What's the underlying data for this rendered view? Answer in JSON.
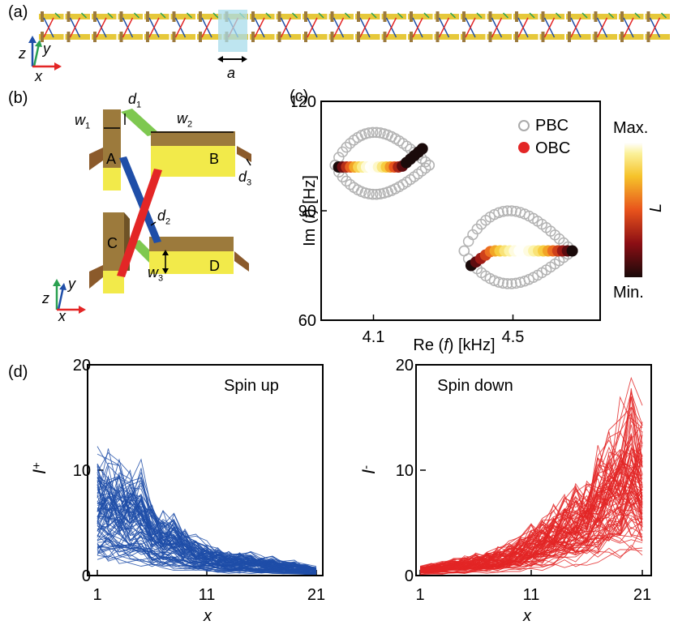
{
  "panels": {
    "a": "(a)",
    "b": "(b)",
    "c": "(c)",
    "d": "(d)"
  },
  "panel_a": {
    "lattice_const": "a",
    "axes": {
      "z": "z",
      "y": "y",
      "x": "x"
    },
    "unit_cells": 24
  },
  "panel_b": {
    "resonators": [
      "A",
      "B",
      "C",
      "D"
    ],
    "dims": {
      "w1": "w",
      "w1_sub": "1",
      "w2": "w",
      "w2_sub": "2",
      "w3": "w",
      "w3_sub": "3",
      "d1": "d",
      "d1_sub": "1",
      "d2": "d",
      "d2_sub": "2",
      "d3": "d",
      "d3_sub": "3"
    },
    "axes": {
      "z": "z",
      "y": "y",
      "x": "x"
    }
  },
  "chart_data": [
    {
      "id": "c",
      "type": "scatter",
      "xlabel_pre": "Re (",
      "xlabel_var": "f",
      "xlabel_post": ") [kHz]",
      "ylabel_pre": "Im (",
      "ylabel_var": "f",
      "ylabel_post": ") [Hz]",
      "xlim": [
        3.95,
        4.75
      ],
      "ylim": [
        60,
        120
      ],
      "xticks": [
        4.1,
        4.5
      ],
      "xtick_labels": [
        "4.1",
        "4.5"
      ],
      "yticks": [
        60,
        90,
        120
      ],
      "ytick_labels": [
        "60",
        "90",
        "120"
      ],
      "legend": [
        "PBC",
        "OBC"
      ],
      "colorbar": {
        "max": "Max.",
        "min": "Min.",
        "label": "L"
      },
      "series": [
        {
          "name": "PBC",
          "loops": [
            {
              "x_range": [
                3.99,
                4.26
              ],
              "center_im": 102.5,
              "upper_amp": 9,
              "lower_amp": 8
            },
            {
              "x_range": [
                4.36,
                4.67
              ],
              "center_im": 79,
              "upper_amp": 11,
              "lower_amp": 9
            }
          ]
        },
        {
          "name": "OBC",
          "arcs": [
            {
              "x_range": [
                4.0,
                4.24
              ],
              "im_left": 102,
              "im_right": 107,
              "im_mid": 102
            },
            {
              "x_range": [
                4.38,
                4.67
              ],
              "im_left": 75,
              "im_right": 79,
              "im_mid": 79
            }
          ]
        }
      ]
    },
    {
      "id": "d-left",
      "type": "line",
      "title": "Spin up",
      "xlabel": "x",
      "ylabel_main": "I",
      "ylabel_sub": "+",
      "xlim": [
        1,
        21
      ],
      "ylim": [
        0,
        20
      ],
      "xticks": [
        1,
        11,
        21
      ],
      "xtick_labels": [
        "1",
        "11",
        "21"
      ],
      "yticks": [
        0,
        10,
        20
      ],
      "ytick_labels": [
        "0",
        "10",
        "20"
      ],
      "color": "#1f4ea8",
      "num_curves": 90,
      "envelope_max": [
        13,
        12.5,
        12,
        11.5,
        11.5,
        8,
        6.5,
        6.5,
        5,
        4,
        3.5,
        3,
        2.5,
        2.5,
        2.5,
        2,
        2,
        1.5,
        1.5,
        1.2,
        1
      ]
    },
    {
      "id": "d-right",
      "type": "line",
      "title": "Spin down",
      "xlabel": "x",
      "ylabel_main": "I",
      "ylabel_sub": "-",
      "xlim": [
        1,
        21
      ],
      "ylim": [
        0,
        20
      ],
      "xticks": [
        1,
        11,
        21
      ],
      "xtick_labels": [
        "1",
        "11",
        "21"
      ],
      "yticks": [
        0,
        10,
        20
      ],
      "ytick_labels": [
        "0",
        "10",
        "20"
      ],
      "color": "#e32626",
      "num_curves": 90,
      "envelope_max": [
        1,
        1.2,
        1.5,
        1.8,
        2,
        2.3,
        2.6,
        3,
        3.5,
        4.2,
        5,
        6,
        7,
        8.5,
        9.5,
        11,
        13,
        15,
        17,
        20,
        17
      ]
    }
  ]
}
